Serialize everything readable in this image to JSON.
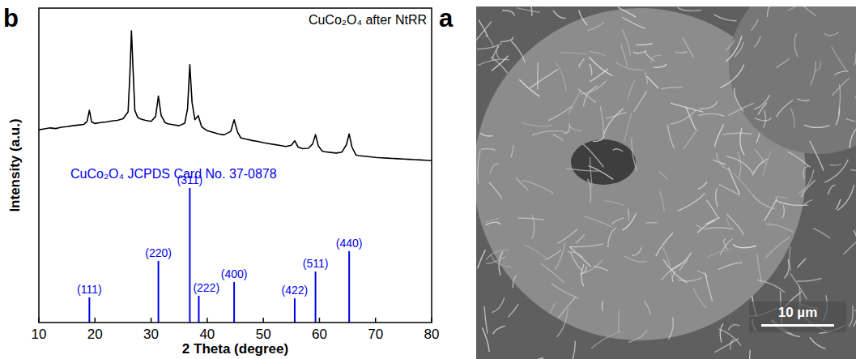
{
  "chart_data": {
    "type": "line",
    "panel_label": "b",
    "x_label": "2 Theta (degree)",
    "y_label": "Intensity (a.u.)",
    "xlim": [
      10,
      80
    ],
    "xticks": [
      10,
      20,
      30,
      40,
      50,
      60,
      70,
      80
    ],
    "ylim": [
      0,
      100
    ],
    "yticks": [],
    "tick_labels": "x",
    "grid": false,
    "legend": "upper right",
    "annotations": [
      "CuCo₂O₄ JCPDS Card No. 37-0878"
    ],
    "series": [
      {
        "name": "CuCo₂O₄ after NtRR",
        "type": "line",
        "color": "#000000",
        "x": [
          10,
          11,
          12,
          13,
          14,
          15,
          16,
          17,
          18,
          18.6,
          19,
          19.4,
          20,
          21,
          22,
          23,
          24,
          25,
          25.9,
          26.2,
          26.5,
          26.8,
          27.1,
          27.6,
          28,
          29,
          30,
          30.8,
          31.3,
          31.8,
          32.5,
          33,
          34,
          35,
          36,
          36.5,
          36.9,
          37.3,
          37.8,
          38.4,
          39,
          40,
          41,
          42,
          43,
          44.2,
          44.8,
          45.4,
          46,
          47,
          48,
          49,
          50,
          51,
          52,
          53,
          54,
          55,
          55.6,
          56.2,
          57,
          58,
          58.8,
          59.3,
          59.8,
          60.5,
          61,
          62,
          63,
          64,
          64.8,
          65.3,
          65.8,
          66.5,
          67,
          68,
          69,
          70,
          71,
          72,
          73,
          74,
          75,
          76,
          77,
          78,
          79,
          80
        ],
        "values": [
          61.3,
          61.6,
          61.9,
          61.7,
          62.1,
          62.3,
          62.6,
          62.8,
          63.0,
          64,
          67.5,
          63.8,
          63.3,
          63.6,
          63.8,
          64.1,
          64.3,
          64.8,
          67,
          78,
          92.8,
          80,
          67.5,
          65.3,
          64.8,
          64.3,
          64.0,
          65.5,
          72,
          65.8,
          63.6,
          63.2,
          62.9,
          62.6,
          63.4,
          68,
          82,
          70,
          64.5,
          65.8,
          62.3,
          61.0,
          60.5,
          60.0,
          59.7,
          60.8,
          64.5,
          60.6,
          58.7,
          58.3,
          57.9,
          57.6,
          57.2,
          56.9,
          56.6,
          56.3,
          56.0,
          56.4,
          57.8,
          55.8,
          55.3,
          55.4,
          56.8,
          59.8,
          56.2,
          54.5,
          54.3,
          54.1,
          53.9,
          54.2,
          56.5,
          60,
          55.8,
          53.3,
          53.1,
          52.9,
          52.7,
          52.5,
          52.4,
          52.3,
          52.2,
          52.1,
          52.0,
          51.9,
          51.8,
          51.7,
          51.6,
          51.5
        ]
      },
      {
        "name": "CuCo₂O₄ JCPDS Card No. 37-0878",
        "type": "bar",
        "color": "#0000ee",
        "x": [
          19.0,
          31.3,
          36.9,
          38.5,
          44.8,
          55.6,
          59.3,
          65.3
        ],
        "values": [
          8.0,
          19.6,
          42.8,
          8.5,
          12.9,
          7.7,
          16.2,
          22.7
        ],
        "peak_labels": [
          "(111)",
          "(220)",
          "(311)",
          "(222)",
          "(400)",
          "(422)",
          "(511)",
          "(440)"
        ]
      }
    ]
  },
  "image_panel": {
    "panel_label": "a",
    "scale_bar": "10 µm"
  }
}
